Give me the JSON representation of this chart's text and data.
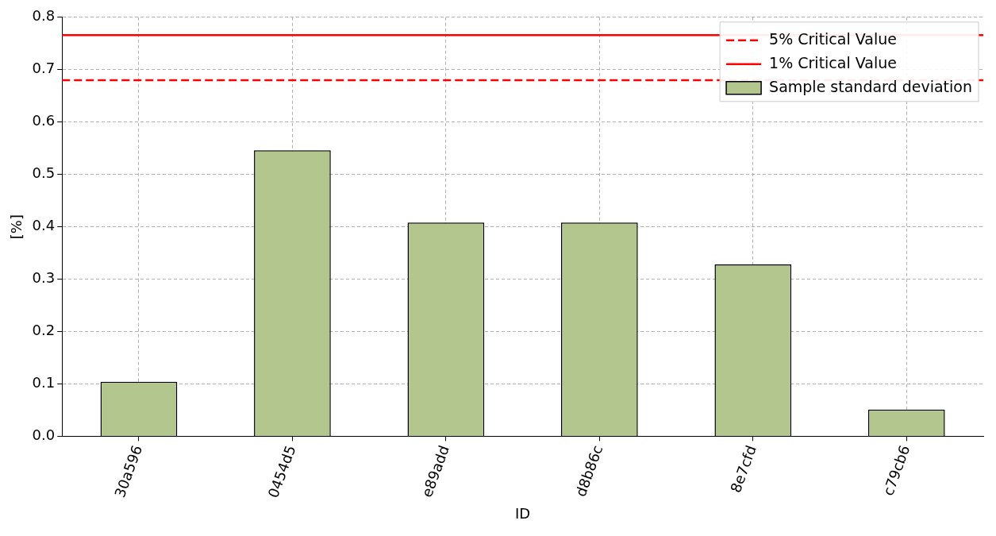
{
  "chart_data": {
    "type": "bar",
    "xlabel": "ID",
    "ylabel": "[%]",
    "categories": [
      "30a596",
      "0454d5",
      "e89add",
      "d8b86c",
      "8e7cfd",
      "c79cb6"
    ],
    "series": [
      {
        "name": "Sample standard deviation",
        "color": "#b2c68d",
        "values": [
          0.104,
          0.546,
          0.408,
          0.408,
          0.328,
          0.051
        ]
      }
    ],
    "ref_lines": [
      {
        "axis": "y",
        "value": 0.68,
        "label": "5% Critical Value",
        "color": "#ff0000",
        "line_style": "dashed"
      },
      {
        "axis": "y",
        "value": 0.766,
        "label": "1% Critical Value",
        "color": "#ff0000",
        "line_style": "solid"
      }
    ],
    "ylim": [
      0,
      0.8
    ],
    "yticks": [
      {
        "value": 0,
        "label": "0.0"
      },
      0.1,
      0.2,
      0.3,
      0.4,
      0.5,
      0.6,
      0.7,
      0.8
    ],
    "grid": true,
    "legend": "top right"
  }
}
